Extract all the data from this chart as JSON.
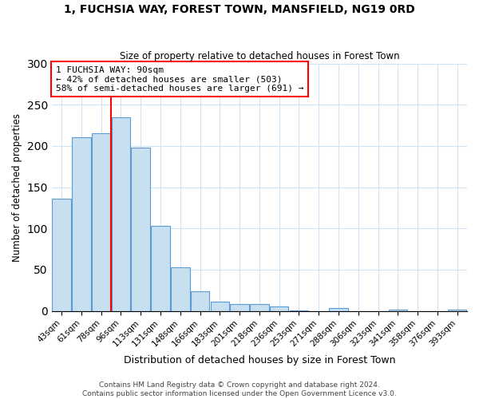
{
  "title": "1, FUCHSIA WAY, FOREST TOWN, MANSFIELD, NG19 0RD",
  "subtitle": "Size of property relative to detached houses in Forest Town",
  "xlabel": "Distribution of detached houses by size in Forest Town",
  "ylabel": "Number of detached properties",
  "bar_labels": [
    "43sqm",
    "61sqm",
    "78sqm",
    "96sqm",
    "113sqm",
    "131sqm",
    "148sqm",
    "166sqm",
    "183sqm",
    "201sqm",
    "218sqm",
    "236sqm",
    "253sqm",
    "271sqm",
    "288sqm",
    "306sqm",
    "323sqm",
    "341sqm",
    "358sqm",
    "376sqm",
    "393sqm"
  ],
  "bar_values": [
    136,
    211,
    215,
    235,
    198,
    103,
    53,
    24,
    11,
    8,
    8,
    5,
    1,
    0,
    3,
    0,
    0,
    2,
    0,
    0,
    2
  ],
  "bar_color": "#c8dff0",
  "bar_edge_color": "#5b9bd5",
  "vline_x_index": 3,
  "vline_color": "red",
  "annotation_title": "1 FUCHSIA WAY: 90sqm",
  "annotation_line1": "← 42% of detached houses are smaller (503)",
  "annotation_line2": "58% of semi-detached houses are larger (691) →",
  "annotation_box_color": "white",
  "annotation_box_edge": "red",
  "ylim": [
    0,
    300
  ],
  "yticks": [
    0,
    50,
    100,
    150,
    200,
    250,
    300
  ],
  "footer1": "Contains HM Land Registry data © Crown copyright and database right 2024.",
  "footer2": "Contains public sector information licensed under the Open Government Licence v3.0."
}
